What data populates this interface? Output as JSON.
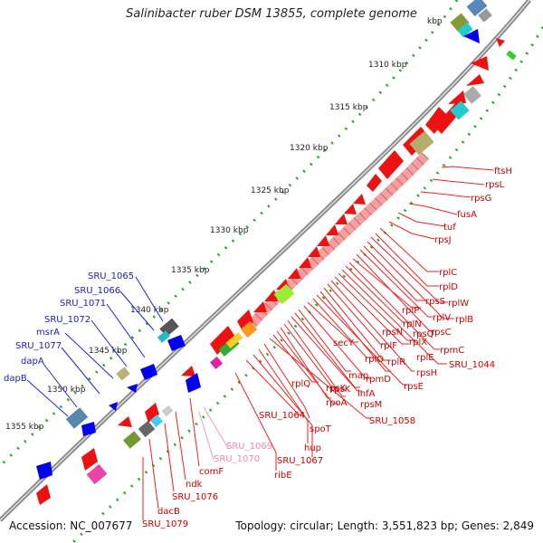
{
  "title": "Salinibacter ruber DSM 13855, complete genome",
  "footer": {
    "accession_label": "Accession: NC_007677",
    "summary": "Topology: circular; Length: 3,551,823 bp; Genes: 2,849"
  },
  "axis": {
    "ticks": [
      "1310 kbp",
      "1315 kbp",
      "1320 kbp",
      "1325 kbp",
      "1330 kbp",
      "1335 kbp",
      "1340 kbp",
      "1345 kbp",
      "1350 kbp",
      "1355 kbp"
    ],
    "partial_tick": "kbp"
  },
  "colors": {
    "forward_gene": "#ee1111",
    "ribosomal": "#f4a0a0",
    "reverse_gene": "#0000ee",
    "backbone": "#888888",
    "red_label": "#cc0000",
    "blue_label": "#1a1acc",
    "pink_label": "#ee88aa"
  },
  "labels_right_red": [
    "ftsH",
    "rpsL",
    "rpsG",
    "fusA",
    "tuf",
    "rpsJ",
    "rplC",
    "rplD",
    "rplW",
    "rplB",
    "rpsS",
    "rplV",
    "rpsC",
    "rplP",
    "rpmC",
    "rpsQ",
    "rplN",
    "SRU_1044",
    "rplX",
    "rplE",
    "rpsN",
    "rplF",
    "rpsH",
    "rplR",
    "rpsE",
    "secY",
    "rplO",
    "rpmD",
    "map",
    "infA",
    "rpsM",
    "rpsK",
    "rpsD",
    "rpoA",
    "rplQ",
    "SRU_1058",
    "SRU_1064",
    "spoT",
    "hup",
    "SRU_1067",
    "ribE",
    "comF",
    "ndk",
    "SRU_1076",
    "dacB",
    "SRU_1079"
  ],
  "labels_pink": [
    "SRU_1069",
    "SRU_1070"
  ],
  "labels_left_blue": [
    "SRU_1065",
    "SRU_1066",
    "SRU_1071",
    "SRU_1072",
    "msrA",
    "SRU_1077",
    "dapA",
    "dapB"
  ]
}
